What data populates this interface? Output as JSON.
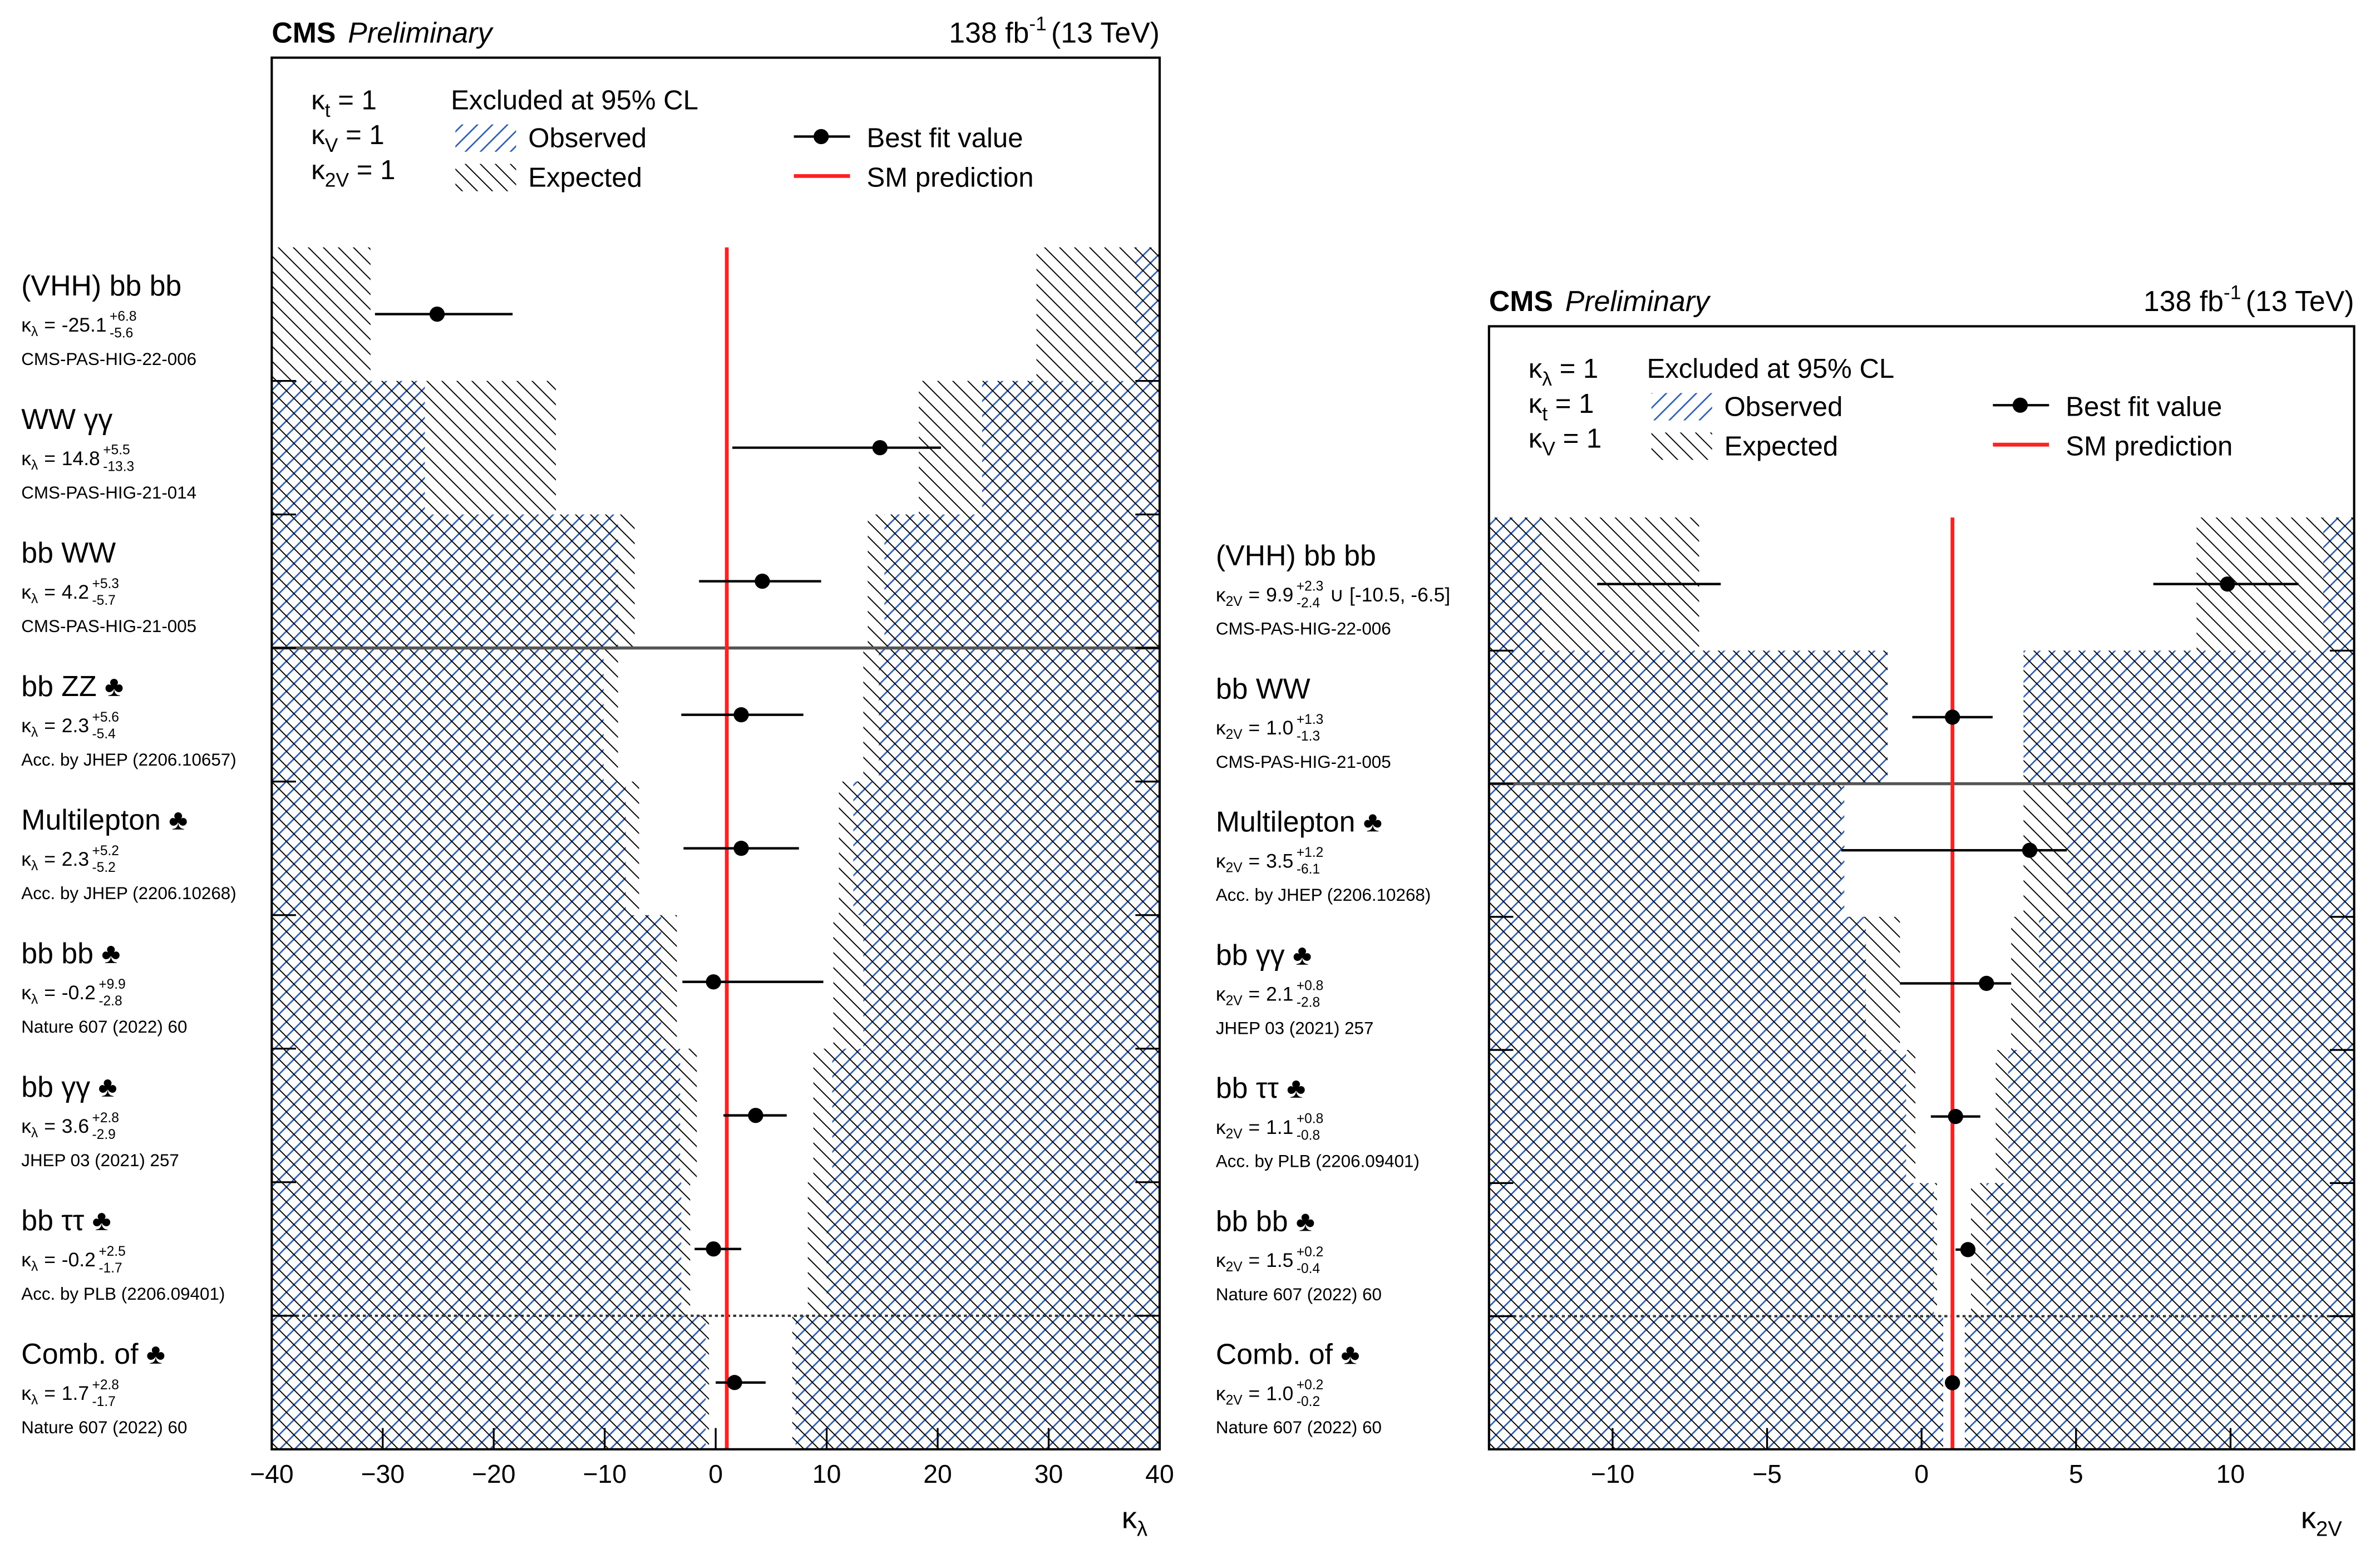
{
  "chart_data": [
    {
      "type": "errorbar",
      "cms": "CMS",
      "status": "Preliminary",
      "lumi": "138 fb",
      "lumi_sup": "-1",
      "energy": "(13 TeV)",
      "constraints": [
        {
          "symbol": "κ",
          "sub": "t",
          "rhs": "= 1"
        },
        {
          "symbol": "κ",
          "sub": "V",
          "rhs": "= 1"
        },
        {
          "symbol": "κ",
          "sub": "2V",
          "rhs": "= 1"
        }
      ],
      "legend_title": "Excluded at 95% CL",
      "legend": {
        "observed": "Observed",
        "expected": "Expected",
        "best_fit": "Best fit value",
        "sm": "SM prediction"
      },
      "colors": {
        "observed": "#2f5fb0",
        "expected": "#000000",
        "best_fit": "#000000",
        "sm": "#ff2020"
      },
      "param": {
        "symbol": "κ",
        "sub": "λ",
        "eq": "="
      },
      "xlabel": {
        "symbol": "κ",
        "sub": "λ"
      },
      "xlim": [
        -40,
        40
      ],
      "xticks": [
        {
          "value": -40,
          "label": "−40"
        },
        {
          "value": -30,
          "label": "−30"
        },
        {
          "value": -20,
          "label": "−20"
        },
        {
          "value": -10,
          "label": "−10"
        },
        0,
        10,
        20,
        30,
        40
      ],
      "sm_value": 1,
      "solid_after": 2,
      "dotted_after": 7,
      "rows": [
        {
          "name": "(VHH) bb bb",
          "value": -25.1,
          "up": 6.8,
          "up_label": "+6.8",
          "down": 5.6,
          "down_label": "-5.6",
          "ref": "CMS-PAS-HIG-22-006",
          "obs": [
            -40,
            37.8
          ],
          "exp": [
            -31.1,
            28.9
          ]
        },
        {
          "name": "WW γγ",
          "value": 14.8,
          "up": 5.5,
          "up_label": "+5.5",
          "down": 13.3,
          "down_label": "-13.3",
          "ref": "CMS-PAS-HIG-21-014",
          "obs": [
            -26.2,
            24.0
          ],
          "exp": [
            -14.4,
            18.3
          ]
        },
        {
          "name": "bb WW",
          "value": 4.2,
          "up": 5.3,
          "up_label": "+5.3",
          "down": 5.7,
          "down_label": "-5.7",
          "ref": "CMS-PAS-HIG-21-005",
          "obs": [
            -8.8,
            15.2
          ],
          "exp": [
            -7.3,
            13.7
          ]
        },
        {
          "name": "bb ZZ ♣",
          "value": 2.3,
          "up": 5.6,
          "up_label": "+5.6",
          "down": 5.4,
          "down_label": "-5.4",
          "ref": "Acc. by JHEP (2206.10657)",
          "obs": [
            -10.1,
            14.7
          ],
          "exp": [
            -8.8,
            13.3
          ]
        },
        {
          "name": "Multilepton ♣",
          "value": 2.3,
          "up": 5.2,
          "up_label": "+5.2",
          "down": 5.2,
          "down_label": "-5.2",
          "ref": "Acc. by JHEP (2206.10268)",
          "obs": [
            -8.1,
            12.4
          ],
          "exp": [
            -6.9,
            11.1
          ]
        },
        {
          "name": "bb bb ♣",
          "value": -0.2,
          "up": 9.9,
          "up_label": "+9.9",
          "down": 2.8,
          "down_label": "-2.8",
          "ref": "Nature 607 (2022) 60",
          "obs": [
            -4.9,
            13.3
          ],
          "exp": [
            -3.5,
            10.6
          ]
        },
        {
          "name": "bb γγ ♣",
          "value": 3.6,
          "up": 2.8,
          "up_label": "+2.8",
          "down": 2.9,
          "down_label": "-2.9",
          "ref": "JHEP 03 (2021) 257",
          "obs": [
            -3.2,
            10.5
          ],
          "exp": [
            -1.7,
            8.8
          ]
        },
        {
          "name": "bb ττ ♣",
          "value": -0.2,
          "up": 2.5,
          "up_label": "+2.5",
          "down": 1.7,
          "down_label": "-1.7",
          "ref": "Acc. by PLB (2206.09401)",
          "obs": [
            -3.1,
            10.0
          ],
          "exp": [
            -2.3,
            8.3
          ]
        },
        {
          "name": "Comb. of ♣",
          "value": 1.7,
          "up": 2.8,
          "up_label": "+2.8",
          "down": 1.7,
          "down_label": "-1.7",
          "ref": "Nature 607 (2022) 60",
          "obs": [
            -0.9,
            7.2
          ],
          "exp": [
            -0.6,
            6.9
          ]
        }
      ]
    },
    {
      "type": "errorbar",
      "cms": "CMS",
      "status": "Preliminary",
      "lumi": "138 fb",
      "lumi_sup": "-1",
      "energy": "(13 TeV)",
      "constraints": [
        {
          "symbol": "κ",
          "sub": "λ",
          "rhs": "= 1"
        },
        {
          "symbol": "κ",
          "sub": "t",
          "rhs": "= 1"
        },
        {
          "symbol": "κ",
          "sub": "V",
          "rhs": "= 1"
        }
      ],
      "legend_title": "Excluded at 95% CL",
      "legend": {
        "observed": "Observed",
        "expected": "Expected",
        "best_fit": "Best fit value",
        "sm": "SM prediction"
      },
      "colors": {
        "observed": "#2f5fb0",
        "expected": "#000000",
        "best_fit": "#000000",
        "sm": "#ff2020"
      },
      "param": {
        "symbol": "κ",
        "sub": "2V",
        "eq": "="
      },
      "xlabel": {
        "symbol": "κ",
        "sub": "2V"
      },
      "xlim": [
        -14,
        14
      ],
      "xticks": [
        {
          "value": -10,
          "label": "−10"
        },
        {
          "value": -5,
          "label": "−5"
        },
        0,
        5,
        10
      ],
      "sm_value": 1,
      "solid_after": 1,
      "dotted_after": 5,
      "rows": [
        {
          "name": "(VHH) bb bb",
          "value": 9.9,
          "up": 2.3,
          "up_label": "+2.3",
          "down": 2.4,
          "down_label": "-2.4",
          "extra": {
            "lo": -10.5,
            "hi": -6.5,
            "label": "∪ [-10.5, -6.5]"
          },
          "ref": "CMS-PAS-HIG-22-006",
          "obs": [
            -12.3,
            13.0
          ],
          "exp": [
            -7.2,
            8.9
          ]
        },
        {
          "name": "bb WW",
          "value": 1.0,
          "value_label": "1.0",
          "up": 1.3,
          "up_label": "+1.3",
          "down": 1.3,
          "down_label": "-1.3",
          "ref": "CMS-PAS-HIG-21-005",
          "obs": [
            -1.1,
            3.3
          ],
          "exp": [
            -1.1,
            3.3
          ]
        },
        {
          "name": "Multilepton ♣",
          "value": 3.5,
          "up": 1.2,
          "up_label": "+1.2",
          "down": 6.1,
          "down_label": "-6.1",
          "ref": "Acc. by JHEP (2206.10268)",
          "obs": [
            -2.5,
            4.7
          ],
          "exp": [
            -2.6,
            3.3
          ]
        },
        {
          "name": "bb γγ ♣",
          "value": 2.1,
          "up": 0.8,
          "up_label": "+0.8",
          "down": 2.8,
          "down_label": "-2.8",
          "ref": "JHEP 03 (2021) 257",
          "obs": [
            -1.8,
            3.8
          ],
          "exp": [
            -0.7,
            2.9
          ]
        },
        {
          "name": "bb ττ ♣",
          "value": 1.1,
          "up": 0.8,
          "up_label": "+0.8",
          "down": 0.8,
          "down_label": "-0.8",
          "ref": "Acc. by PLB (2206.09401)",
          "obs": [
            -0.5,
            2.8
          ],
          "exp": [
            -0.2,
            2.4
          ]
        },
        {
          "name": "bb bb ♣",
          "value": 1.5,
          "up": 0.2,
          "up_label": "+0.2",
          "down": 0.4,
          "down_label": "-0.4",
          "ref": "Nature 607 (2022) 60",
          "obs": [
            0.4,
            2.1
          ],
          "exp": [
            0.5,
            1.6
          ]
        },
        {
          "name": "Comb. of ♣",
          "value": 1.0,
          "value_label": "1.0",
          "up": 0.2,
          "up_label": "+0.2",
          "down": 0.2,
          "down_label": "-0.2",
          "ref": "Nature 607 (2022) 60",
          "obs": [
            0.7,
            1.4
          ],
          "exp": [
            0.7,
            1.4
          ]
        }
      ]
    }
  ]
}
